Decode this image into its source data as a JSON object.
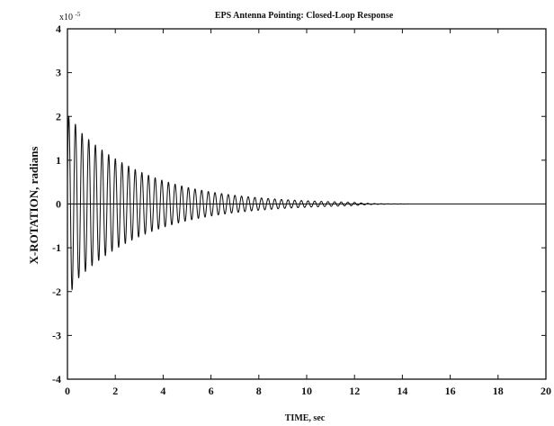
{
  "chart_data": {
    "type": "line",
    "title": "EPS Antenna Pointing: Closed-Loop Response",
    "xlabel": "TIME, sec",
    "ylabel": "X-ROTATION, radians",
    "y_multiplier_label": "x10",
    "y_multiplier_exponent": "-5",
    "xlim": [
      0,
      20
    ],
    "ylim": [
      -4,
      4
    ],
    "xticks": [
      "0",
      "2",
      "4",
      "6",
      "8",
      "10",
      "12",
      "14",
      "16",
      "18",
      "20"
    ],
    "yticks": [
      "4",
      "3",
      "2",
      "1",
      "0",
      "-1",
      "-2",
      "-3",
      "-4"
    ],
    "grid": false,
    "series": [
      {
        "signal": "decaying oscillation",
        "initial_peak_positive": 2.0,
        "initial_peak_negative": -2.05,
        "oscillation_frequency_hz": 3.6,
        "decay_rate_per_sec": 0.33,
        "effectively_zero_after_sec": 12,
        "x_samples": [
          0,
          1,
          2,
          3,
          4,
          5,
          6,
          7,
          8,
          9,
          10,
          11,
          12,
          14,
          16,
          18,
          20
        ],
        "envelope": [
          2.0,
          1.7,
          1.55,
          1.2,
          0.95,
          0.7,
          0.5,
          0.35,
          0.23,
          0.15,
          0.08,
          0.04,
          0.02,
          0.0,
          0.0,
          0.0,
          0.0
        ]
      }
    ]
  }
}
